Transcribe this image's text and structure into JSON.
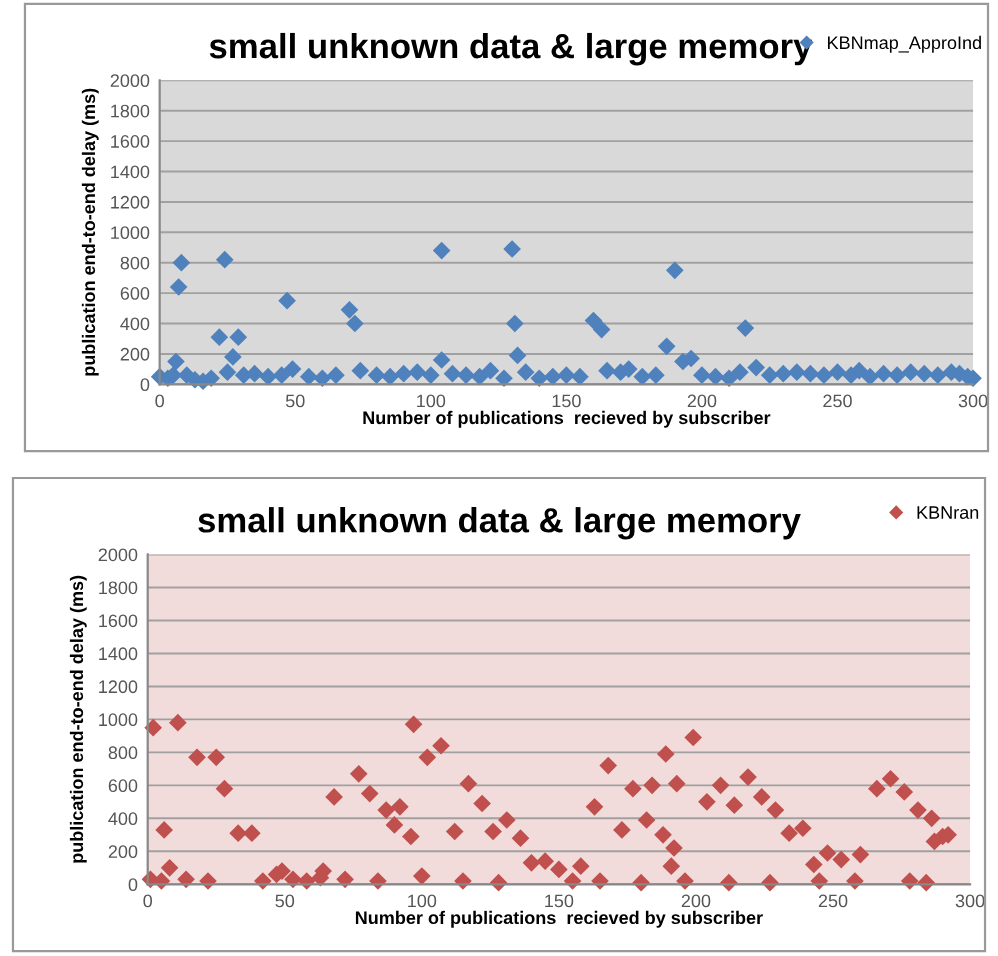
{
  "chart_data": [
    {
      "type": "scatter",
      "title": "small unknown data & large memory",
      "xlabel": "Number of publications  recieved by subscriber",
      "ylabel": "publication end-to-end delay (ms)",
      "xlim": [
        0,
        300
      ],
      "ylim": [
        0,
        2000
      ],
      "xticks": [
        0,
        50,
        100,
        150,
        200,
        250,
        300
      ],
      "yticks": [
        0,
        200,
        400,
        600,
        800,
        1000,
        1200,
        1400,
        1600,
        1800,
        2000
      ],
      "grid": "y",
      "legend": "top right",
      "marker": "diamond",
      "series": [
        {
          "name": "KBNmap_ApproInd",
          "color": "#4f81bd",
          "x": [
            0,
            3,
            5,
            6,
            7,
            8,
            10,
            13,
            16,
            19,
            22,
            24,
            25,
            27,
            29,
            31,
            35,
            40,
            45,
            47,
            49,
            55,
            60,
            65,
            70,
            72,
            74,
            80,
            85,
            90,
            95,
            100,
            104,
            104,
            108,
            113,
            118,
            122,
            127,
            130,
            131,
            132,
            135,
            140,
            145,
            150,
            155,
            160,
            163,
            165,
            170,
            173,
            178,
            183,
            187,
            190,
            193,
            196,
            200,
            205,
            210,
            214,
            216,
            220,
            225,
            230,
            235,
            240,
            245,
            250,
            255,
            258,
            262,
            267,
            272,
            277,
            282,
            287,
            292,
            295,
            298,
            300
          ],
          "values": [
            50,
            40,
            60,
            150,
            640,
            800,
            60,
            30,
            20,
            40,
            310,
            820,
            80,
            180,
            310,
            60,
            70,
            50,
            60,
            550,
            100,
            50,
            40,
            60,
            490,
            400,
            90,
            60,
            50,
            70,
            80,
            60,
            880,
            160,
            70,
            60,
            50,
            90,
            40,
            890,
            400,
            190,
            80,
            40,
            50,
            60,
            50,
            420,
            360,
            90,
            80,
            100,
            50,
            60,
            250,
            750,
            150,
            170,
            60,
            50,
            40,
            80,
            370,
            110,
            60,
            70,
            80,
            70,
            60,
            80,
            60,
            90,
            50,
            70,
            60,
            80,
            70,
            60,
            80,
            70,
            50,
            40
          ]
        }
      ]
    },
    {
      "type": "scatter",
      "title": "small unknown data & large memory",
      "xlabel": "Number of publications  recieved by subscriber",
      "ylabel": "publication end-to-end delay (ms)",
      "xlim": [
        0,
        300
      ],
      "ylim": [
        0,
        2000
      ],
      "xticks": [
        0,
        50,
        100,
        150,
        200,
        250,
        300
      ],
      "yticks": [
        0,
        200,
        400,
        600,
        800,
        1000,
        1200,
        1400,
        1600,
        1800,
        2000
      ],
      "grid": "y",
      "legend": "top right",
      "marker": "diamond",
      "series": [
        {
          "name": "KBNran",
          "color": "#c0504d",
          "x": [
            1,
            2,
            5,
            6,
            8,
            11,
            14,
            18,
            22,
            25,
            28,
            33,
            38,
            42,
            47,
            49,
            53,
            58,
            63,
            64,
            68,
            72,
            77,
            81,
            84,
            87,
            90,
            92,
            96,
            97,
            100,
            102,
            107,
            112,
            115,
            117,
            122,
            126,
            128,
            131,
            136,
            140,
            145,
            150,
            155,
            158,
            163,
            165,
            168,
            173,
            177,
            180,
            182,
            184,
            188,
            189,
            191,
            192,
            193,
            196,
            199,
            204,
            209,
            212,
            214,
            219,
            224,
            227,
            229,
            234,
            239,
            243,
            245,
            248,
            253,
            258,
            260,
            266,
            271,
            276,
            278,
            281,
            284,
            286,
            287,
            290,
            292
          ],
          "values": [
            30,
            950,
            20,
            330,
            100,
            980,
            30,
            770,
            20,
            770,
            580,
            310,
            310,
            20,
            60,
            80,
            30,
            20,
            40,
            80,
            530,
            30,
            670,
            550,
            20,
            450,
            360,
            470,
            290,
            970,
            50,
            770,
            840,
            320,
            20,
            610,
            490,
            320,
            10,
            390,
            280,
            130,
            140,
            90,
            20,
            110,
            470,
            20,
            720,
            330,
            580,
            10,
            390,
            600,
            300,
            790,
            110,
            220,
            610,
            20,
            890,
            500,
            600,
            10,
            480,
            650,
            530,
            10,
            450,
            310,
            340,
            120,
            20,
            190,
            150,
            20,
            180,
            580,
            640,
            560,
            20,
            450,
            10,
            400,
            260,
            290,
            300
          ]
        }
      ]
    }
  ]
}
